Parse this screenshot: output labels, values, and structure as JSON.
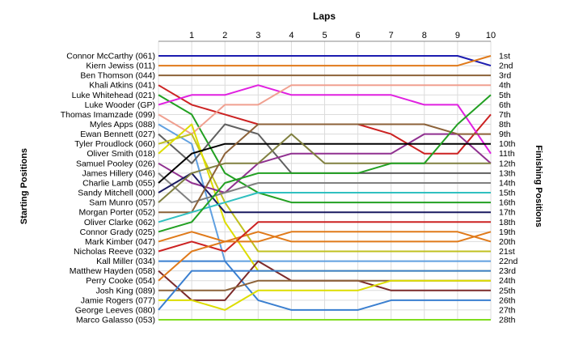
{
  "chart_data": {
    "type": "line",
    "title": "Laps",
    "ylabel_left": "Starting Positions",
    "ylabel_right": "Finishing Positions",
    "x": [
      0,
      1,
      2,
      3,
      4,
      5,
      6,
      7,
      8,
      9,
      10
    ],
    "x_tick_labels": [
      "1",
      "2",
      "3",
      "4",
      "5",
      "6",
      "7",
      "8",
      "9",
      "10"
    ],
    "grid": true,
    "starting_order": [
      "Connor McCarthy (061)",
      "Kiern Jewiss (011)",
      "Ben Thomson (044)",
      "Khali Atkins (041)",
      "Luke Whitehead (021)",
      "Luke Wooder (GP)",
      "Thomas Imamzade (099)",
      "Myles Apps (088)",
      "Ewan Bennett (027)",
      "Tyler Proudlock (060)",
      "Oliver Smith (018)",
      "Samuel Pooley (026)",
      "James Hillery (046)",
      "Charlie Lamb (055)",
      "Sandy Mitchell (000)",
      "Sam Munro (057)",
      "Morgan Porter (052)",
      "Oliver Clarke (062)",
      "Connor Grady (025)",
      "Mark Kimber (047)",
      "Nicholas Reeve (032)",
      "Kall Miller (034)",
      "Matthew Hayden (058)",
      "Perry Cooke (054)",
      "Josh King (089)",
      "Jamie Rogers (077)",
      "George Leeves (080)",
      "Marco Galasso (053)"
    ],
    "finishing_positions": [
      "1st",
      "2nd",
      "3rd",
      "4th",
      "5th",
      "6th",
      "7th",
      "8th",
      "9th",
      "10th",
      "11th",
      "12th",
      "13th",
      "14th",
      "15th",
      "16th",
      "17th",
      "18th",
      "19th",
      "20th",
      "21st",
      "22nd",
      "23rd",
      "24th",
      "25th",
      "26th",
      "27th",
      "28th"
    ],
    "series": [
      {
        "color": "#1c1cb0",
        "values": [
          1,
          1,
          1,
          1,
          1,
          1,
          1,
          1,
          1,
          1,
          2
        ]
      },
      {
        "color": "#e07a1a",
        "values": [
          2,
          2,
          2,
          2,
          2,
          2,
          2,
          2,
          2,
          2,
          1
        ]
      },
      {
        "color": "#8c6239",
        "values": [
          3,
          3,
          3,
          3,
          3,
          3,
          3,
          3,
          3,
          3,
          3
        ]
      },
      {
        "color": "#cc2222",
        "values": [
          4,
          6,
          7,
          8,
          8,
          8,
          8,
          9,
          11,
          11,
          7
        ]
      },
      {
        "color": "#22a022",
        "values": [
          5,
          7,
          13,
          15,
          16,
          16,
          16,
          16,
          16,
          16,
          16
        ]
      },
      {
        "color": "#e020e0",
        "values": [
          6,
          5,
          5,
          4,
          5,
          5,
          5,
          5,
          6,
          6,
          11
        ]
      },
      {
        "color": "#f0a090",
        "values": [
          7,
          9,
          6,
          6,
          4,
          4,
          4,
          4,
          4,
          4,
          4
        ]
      },
      {
        "color": "#60a0e0",
        "values": [
          8,
          10,
          22,
          22,
          22,
          22,
          22,
          22,
          22,
          22,
          22
        ]
      },
      {
        "color": "#606060",
        "values": [
          9,
          12,
          8,
          9,
          13,
          13,
          13,
          13,
          13,
          13,
          13
        ]
      },
      {
        "color": "#c0c020",
        "values": [
          10,
          9,
          16,
          21,
          21,
          21,
          21,
          21,
          21,
          21,
          21
        ]
      },
      {
        "color": "#dddd00",
        "values": [
          11,
          8,
          18,
          23,
          23,
          23,
          23,
          23,
          23,
          23,
          23
        ]
      },
      {
        "color": "#903090",
        "values": [
          12,
          14,
          15,
          12,
          11,
          11,
          11,
          11,
          9,
          9,
          12
        ]
      },
      {
        "color": "#808080",
        "values": [
          13,
          16,
          15,
          14,
          14,
          14,
          14,
          14,
          14,
          14,
          14
        ]
      },
      {
        "color": "#000000",
        "values": [
          14,
          11,
          10,
          10,
          10,
          10,
          10,
          10,
          10,
          10,
          10
        ]
      },
      {
        "color": "#1a1a60",
        "values": [
          15,
          13,
          17,
          17,
          17,
          17,
          17,
          17,
          17,
          17,
          17
        ]
      },
      {
        "color": "#808040",
        "values": [
          16,
          13,
          12,
          12,
          9,
          12,
          12,
          12,
          12,
          12,
          12
        ]
      },
      {
        "color": "#8c6239",
        "values": [
          17,
          17,
          11,
          8,
          8,
          8,
          8,
          8,
          8,
          9,
          9
        ]
      },
      {
        "color": "#30c0c0",
        "values": [
          18,
          17,
          16,
          15,
          15,
          15,
          15,
          15,
          15,
          15,
          15
        ]
      },
      {
        "color": "#22a022",
        "values": [
          19,
          18,
          14,
          13,
          13,
          13,
          13,
          12,
          12,
          8,
          5
        ]
      },
      {
        "color": "#e07a1a",
        "values": [
          20,
          19,
          20,
          19,
          20,
          20,
          20,
          20,
          20,
          20,
          19
        ]
      },
      {
        "color": "#cc2222",
        "values": [
          21,
          20,
          21,
          18,
          18,
          18,
          18,
          18,
          18,
          18,
          18
        ]
      },
      {
        "color": "#3a7fd0",
        "values": [
          22,
          22,
          22,
          26,
          27,
          27,
          27,
          26,
          26,
          26,
          26
        ]
      },
      {
        "color": "#7c2a2a",
        "values": [
          23,
          26,
          26,
          22,
          24,
          24,
          24,
          25,
          25,
          25,
          25
        ]
      },
      {
        "color": "#e07a1a",
        "values": [
          24,
          21,
          20,
          20,
          19,
          19,
          19,
          19,
          19,
          19,
          20
        ]
      },
      {
        "color": "#8c6239",
        "values": [
          25,
          25,
          25,
          24,
          24,
          24,
          24,
          24,
          24,
          24,
          24
        ]
      },
      {
        "color": "#dddd00",
        "values": [
          26,
          26,
          27,
          25,
          25,
          25,
          25,
          24,
          24,
          24,
          24
        ]
      },
      {
        "color": "#3a7fd0",
        "values": [
          27,
          23,
          23,
          23,
          23,
          23,
          23,
          23,
          23,
          23,
          23
        ]
      },
      {
        "color": "#80dd20",
        "values": [
          28,
          28,
          28,
          28,
          28,
          28,
          28,
          28,
          28,
          28,
          28
        ]
      }
    ]
  }
}
